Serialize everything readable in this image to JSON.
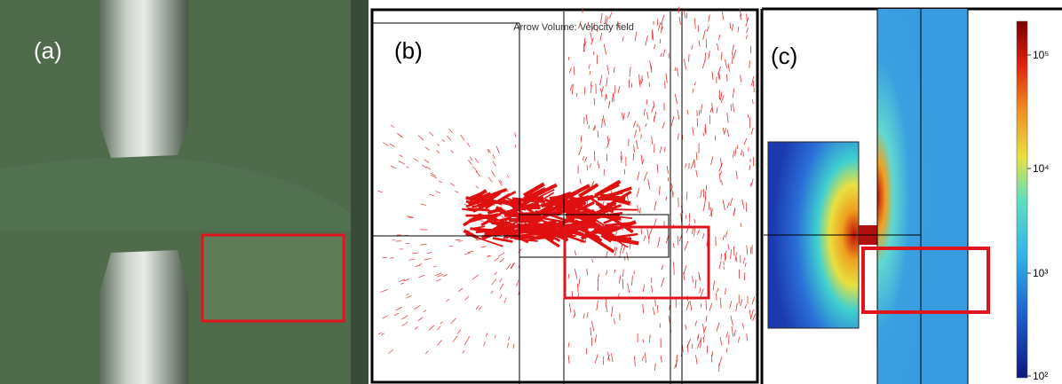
{
  "panels": [
    {
      "label": "(a)"
    },
    {
      "label": "(b)",
      "title": "Arrow Volume: Velocity field"
    },
    {
      "label": "(c)",
      "colorbar_ticks": [
        "10⁵",
        "10⁴",
        "10³",
        "10²"
      ]
    }
  ]
}
